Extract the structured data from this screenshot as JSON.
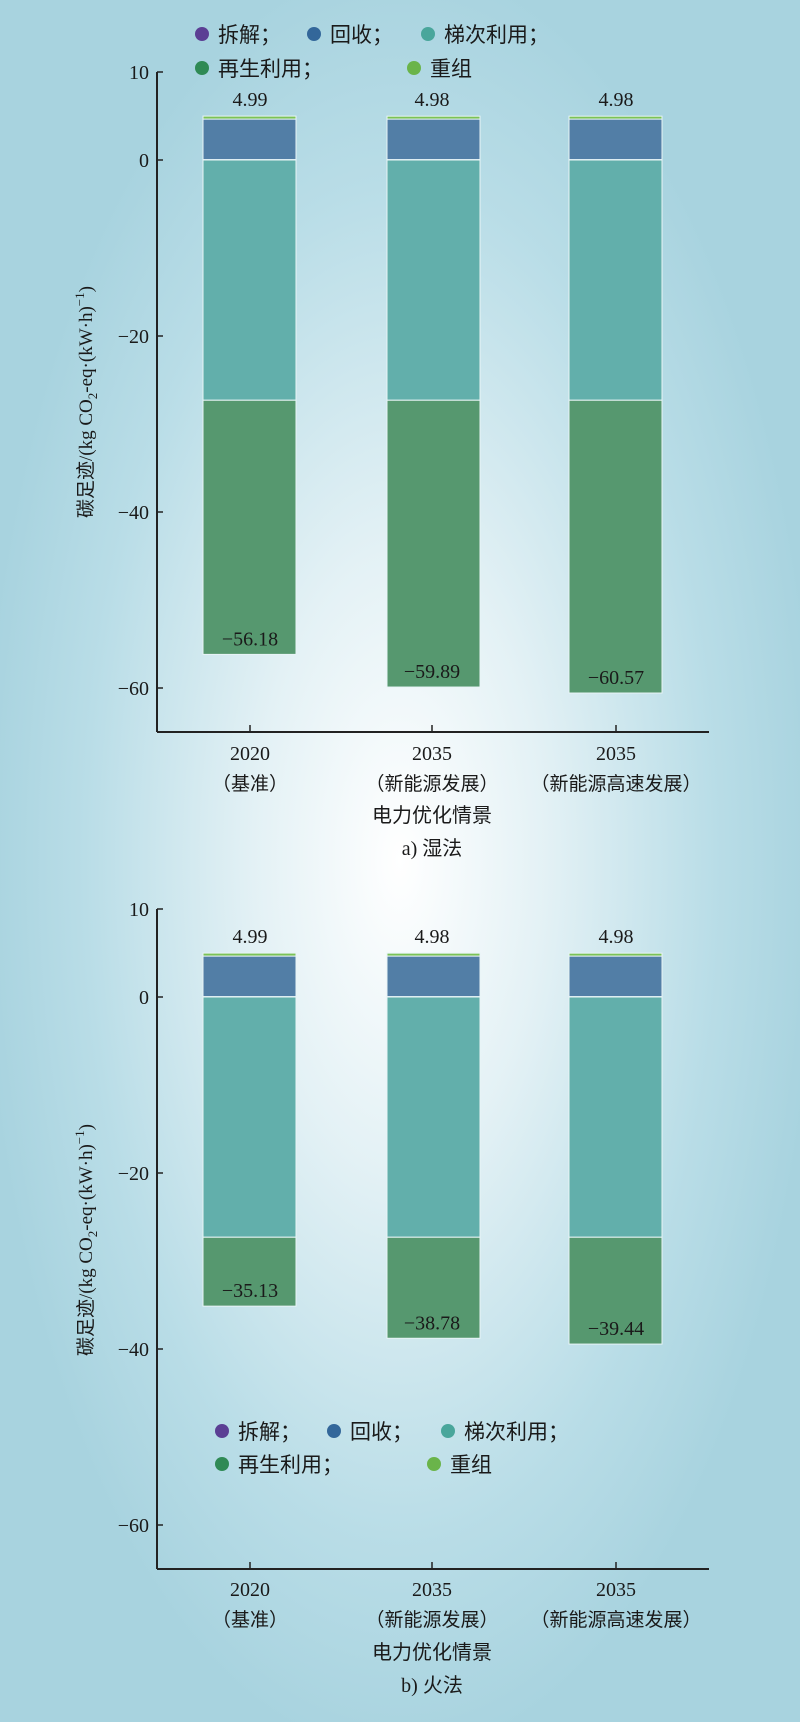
{
  "chart_data": [
    {
      "type": "bar",
      "stacked": true,
      "title": "a) 湿法",
      "xlabel": "电力优化情景",
      "ylabel": "碳足迹/(kg CO2-eq·(kW·h)-1)",
      "ylabel_parts": {
        "main": "碳足迹/(kg CO",
        "sub": "2",
        "mid": "-eq·(kW·h)",
        "sup": "−1",
        "end": ")"
      },
      "ylim": [
        -68,
        10
      ],
      "yticks": [
        10,
        0,
        -20,
        -40,
        -60
      ],
      "ytick_labels": [
        "10",
        "0",
        "−20",
        "−40",
        "−60"
      ],
      "categories": [
        {
          "year": "2020",
          "scenario": "（基准）"
        },
        {
          "year": "2035",
          "scenario": "（新能源发展）"
        },
        {
          "year": "2035",
          "scenario": "（新能源高速发展）"
        }
      ],
      "legend": [
        "拆解；",
        "回收；",
        "梯次利用；",
        "再生利用；",
        "重组"
      ],
      "legend_position": "top",
      "series": [
        {
          "name": "拆解",
          "color": "#5b3f94",
          "bar_color": "#5b3f94",
          "values": [
            0.05,
            0.05,
            0.05
          ]
        },
        {
          "name": "回收",
          "color": "#33679a",
          "bar_color": "#527ea6",
          "values": [
            4.6,
            4.6,
            4.6
          ]
        },
        {
          "name": "梯次利用",
          "color": "#49a69b",
          "bar_color": "#62afab",
          "values": [
            -27.3,
            -27.3,
            -27.3
          ]
        },
        {
          "name": "再生利用",
          "color": "#2f8a55",
          "bar_color": "#56986f",
          "values": [
            -28.88,
            -32.59,
            -33.27
          ]
        },
        {
          "name": "重组",
          "color": "#6ab44a",
          "bar_color": "#7bc257",
          "values": [
            0.34,
            0.33,
            0.33
          ]
        }
      ],
      "positive_totals": [
        "4.99",
        "4.98",
        "4.98"
      ],
      "negative_totals": [
        "−56.18",
        "−59.89",
        "−60.57"
      ]
    },
    {
      "type": "bar",
      "stacked": true,
      "title": "b) 火法",
      "xlabel": "电力优化情景",
      "ylabel": "碳足迹/(kg CO2-eq·(kW·h)-1)",
      "ylabel_parts": {
        "main": "碳足迹/(kg CO",
        "sub": "2",
        "mid": "-eq·(kW·h)",
        "sup": "−1",
        "end": ")"
      },
      "ylim": [
        -65,
        10
      ],
      "yticks": [
        10,
        0,
        -20,
        -40,
        -60
      ],
      "ytick_labels": [
        "10",
        "0",
        "−20",
        "−40",
        "−60"
      ],
      "categories": [
        {
          "year": "2020",
          "scenario": "（基准）"
        },
        {
          "year": "2035",
          "scenario": "（新能源发展）"
        },
        {
          "year": "2035",
          "scenario": "（新能源高速发展）"
        }
      ],
      "legend": [
        "拆解；",
        "回收；",
        "梯次利用；",
        "再生利用；",
        "重组"
      ],
      "legend_position": "bottom-center",
      "series": [
        {
          "name": "拆解",
          "color": "#5b3f94",
          "bar_color": "#5b3f94",
          "values": [
            0.05,
            0.05,
            0.05
          ]
        },
        {
          "name": "回收",
          "color": "#33679a",
          "bar_color": "#527ea6",
          "values": [
            4.6,
            4.6,
            4.6
          ]
        },
        {
          "name": "梯次利用",
          "color": "#49a69b",
          "bar_color": "#62afab",
          "values": [
            -27.3,
            -27.3,
            -27.3
          ]
        },
        {
          "name": "再生利用",
          "color": "#2f8a55",
          "bar_color": "#56986f",
          "values": [
            -7.83,
            -11.48,
            -12.14
          ]
        },
        {
          "name": "重组",
          "color": "#6ab44a",
          "bar_color": "#7bc257",
          "values": [
            0.34,
            0.33,
            0.33
          ]
        }
      ],
      "positive_totals": [
        "4.99",
        "4.98",
        "4.98"
      ],
      "negative_totals": [
        "−35.13",
        "−38.78",
        "−39.44"
      ]
    }
  ]
}
